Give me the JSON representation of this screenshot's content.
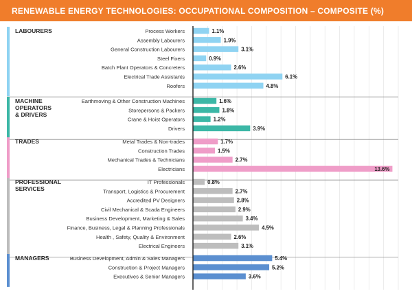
{
  "title": "RENEWABLE ENERGY TECHNOLOGIES: OCCUPATIONAL COMPOSITION – COMPOSITE (%)",
  "colors": {
    "title_bg": "#f07d2b",
    "title_text": "#ffffff",
    "labourers": "#8fd3f2",
    "machine_operators": "#3cb7a6",
    "trades": "#ef9dc8",
    "professional_services": "#bdbdbd",
    "managers": "#5b8fd0"
  },
  "chart_data": {
    "type": "bar",
    "orientation": "horizontal",
    "unit": "%",
    "xlim": [
      0,
      14
    ],
    "grid": true,
    "groups": [
      {
        "name": "LABOURERS",
        "color_key": "labourers",
        "categories": [
          "Process Workers",
          "Assembly Labourers",
          "General Construction Labourers",
          "Steel Fixers",
          "Batch Plant Operators & Concreters",
          "Electrical Trade Assistants",
          "Roofers"
        ],
        "values": [
          1.1,
          1.9,
          3.1,
          0.9,
          2.6,
          6.1,
          4.8
        ],
        "labels": [
          "1.1%",
          "1.9%",
          "3.1%",
          "0.9%",
          "2.6%",
          "6.1%",
          "4.8%"
        ]
      },
      {
        "name": "MACHINE OPERATORS & DRIVERS",
        "name_lines": [
          "MACHINE",
          "OPERATORS",
          "& DRIVERS"
        ],
        "color_key": "machine_operators",
        "categories": [
          "Earthmoving & Other Construction Machines",
          "Storepersons & Packers",
          "Crane & Hoist Operators",
          "Drivers"
        ],
        "values": [
          1.6,
          1.8,
          1.2,
          3.9
        ],
        "labels": [
          "1.6%",
          "1.8%",
          "1.2%",
          "3.9%"
        ]
      },
      {
        "name": "TRADES",
        "color_key": "trades",
        "categories": [
          "Metal Trades & Non-trades",
          "Construction Trades",
          "Mechanical Trades & Technicians",
          "Electricians"
        ],
        "values": [
          1.7,
          1.5,
          2.7,
          13.6
        ],
        "labels": [
          "1.7%",
          "1.5%",
          "2.7%",
          "13.6%"
        ]
      },
      {
        "name": "PROFESSIONAL SERVICES",
        "name_lines": [
          "PROFESSIONAL",
          "SERVICES"
        ],
        "color_key": "professional_services",
        "categories": [
          "IT Professionals",
          "Transport, Logistics & Procurement",
          "Accredited PV Designers",
          "Civil Mechanical & Scada Engineers",
          "Business Development, Marketing & Sales",
          "Finance, Business, Legal & Planning Professionals",
          "Health , Safety, Quality & Environment",
          "Electrical Engineers"
        ],
        "values": [
          0.8,
          2.7,
          2.8,
          2.9,
          3.4,
          4.5,
          2.6,
          3.1
        ],
        "labels": [
          "0.8%",
          "2.7%",
          "2.8%",
          "2.9%",
          "3.4%",
          "4.5%",
          "2.6%",
          "3.1%"
        ]
      },
      {
        "name": "MANAGERS",
        "color_key": "managers",
        "categories": [
          "Business Development, Admin & Sales Managers",
          "Construction & Project Managers",
          "Executives & Senior Managers"
        ],
        "values": [
          5.4,
          5.2,
          3.6
        ],
        "labels": [
          "5.4%",
          "5.2%",
          "3.6%"
        ]
      }
    ]
  }
}
